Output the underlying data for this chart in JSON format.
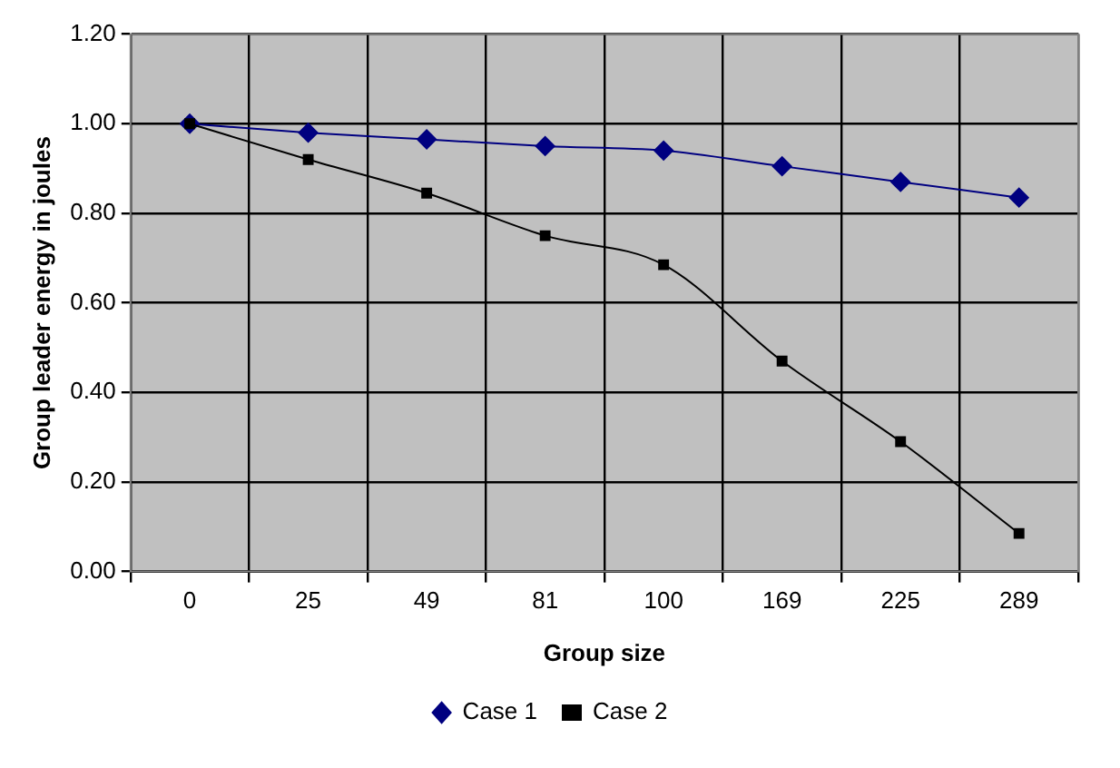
{
  "chart_data": {
    "type": "line",
    "xlabel": "Group size",
    "ylabel": "Group leader energy in joules",
    "categories": [
      "0",
      "25",
      "49",
      "81",
      "100",
      "169",
      "225",
      "289"
    ],
    "series": [
      {
        "name": "Case 1",
        "color": "#000080",
        "marker": "diamond",
        "values": [
          1.0,
          0.98,
          0.965,
          0.95,
          0.94,
          0.905,
          0.87,
          0.835
        ]
      },
      {
        "name": "Case 2",
        "color": "#000000",
        "marker": "square",
        "values": [
          1.0,
          0.92,
          0.845,
          0.75,
          0.685,
          0.47,
          0.29,
          0.085
        ]
      }
    ],
    "ylim": [
      0,
      1.2
    ],
    "yticks": [
      {
        "value": 0,
        "label": "0.00"
      },
      {
        "value": 0.2,
        "label": "0.20"
      },
      {
        "value": 0.4,
        "label": "0.40"
      },
      {
        "value": 0.6,
        "label": "0.60"
      },
      {
        "value": 0.8,
        "label": "0.80"
      },
      {
        "value": 1,
        "label": "1.00"
      },
      {
        "value": 1.2,
        "label": "1.20"
      }
    ],
    "grid": true,
    "legend": "bottom"
  }
}
